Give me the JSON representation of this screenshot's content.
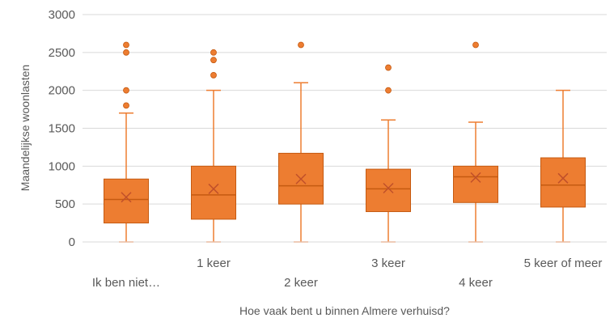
{
  "chart_data": {
    "type": "box",
    "xlabel": "Hoe vaak bent u binnen Almere verhuisd?",
    "ylabel": "Maandelijkse woonlasten",
    "ylim": [
      0,
      3000
    ],
    "yticks": [
      0,
      500,
      1000,
      1500,
      2000,
      2500,
      3000
    ],
    "grid": true,
    "legend": "none",
    "colors": {
      "box": "#ED7D31",
      "border": "#C55A11",
      "grid": "#D9D9D9",
      "text": "#595959"
    },
    "categories": [
      "Ik ben niet…",
      "1 keer",
      "2 keer",
      "3 keer",
      "4 keer",
      "5 keer of meer"
    ],
    "boxes": [
      {
        "category": "Ik ben niet…",
        "min": 0,
        "q1": 250,
        "median": 560,
        "mean": 590,
        "q3": 830,
        "max": 1700,
        "outliers": [
          1800,
          2000,
          2500,
          2600
        ]
      },
      {
        "category": "1 keer",
        "min": 0,
        "q1": 300,
        "median": 620,
        "mean": 700,
        "q3": 1000,
        "max": 2000,
        "outliers": [
          2200,
          2400,
          2500
        ]
      },
      {
        "category": "2 keer",
        "min": 0,
        "q1": 500,
        "median": 740,
        "mean": 830,
        "q3": 1170,
        "max": 2100,
        "outliers": [
          2600
        ]
      },
      {
        "category": "3 keer",
        "min": 0,
        "q1": 400,
        "median": 700,
        "mean": 710,
        "q3": 960,
        "max": 1610,
        "outliers": [
          2000,
          2300
        ]
      },
      {
        "category": "4 keer",
        "min": 0,
        "q1": 520,
        "median": 860,
        "mean": 850,
        "q3": 1000,
        "max": 1580,
        "outliers": [
          2600
        ]
      },
      {
        "category": "5 keer of meer",
        "min": 0,
        "q1": 460,
        "median": 750,
        "mean": 840,
        "q3": 1110,
        "max": 2000,
        "outliers": []
      }
    ]
  }
}
